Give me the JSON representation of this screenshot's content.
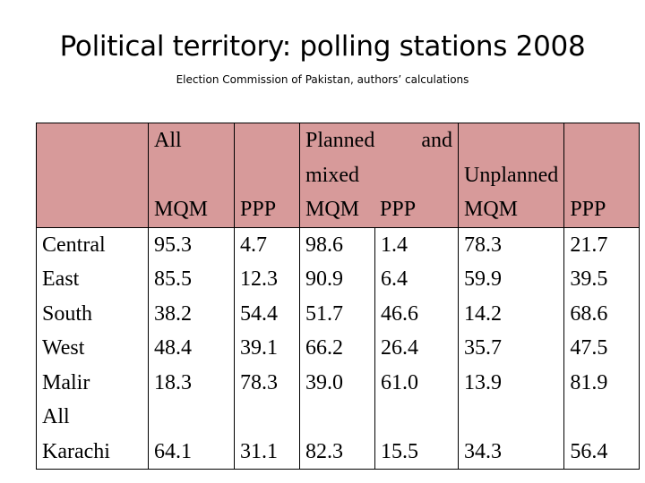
{
  "slide": {
    "title": "Political territory: polling stations 2008",
    "subtitle": "Election Commission of Pakistan, authors’ calculations"
  },
  "table": {
    "groups": {
      "all": "All",
      "planned_line1_a": "Planned",
      "planned_line1_b": "and",
      "planned_line2": "mixed",
      "unplanned": "Unplanned"
    },
    "subheaders": [
      "MQM",
      "PPP",
      "MQM",
      "PPP",
      "MQM",
      "PPP"
    ],
    "row_labels": [
      "Central",
      "East",
      "South",
      "West",
      "Malir"
    ],
    "total_label_line1": "All",
    "total_label_line2": "Karachi",
    "columns": [
      {
        "values": [
          "95.3",
          "85.5",
          "38.2",
          "48.4",
          "18.3"
        ],
        "total": "64.1"
      },
      {
        "values": [
          "4.7",
          "12.3",
          "54.4",
          "39.1",
          "78.3"
        ],
        "total": "31.1"
      },
      {
        "values": [
          "98.6",
          "90.9",
          "51.7",
          "66.2",
          "39.0"
        ],
        "total": "82.3"
      },
      {
        "values": [
          "1.4",
          "6.4",
          "46.6",
          "26.4",
          "61.0"
        ],
        "total": "15.5"
      },
      {
        "values": [
          "78.3",
          "59.9",
          "14.2",
          "35.7",
          "13.9"
        ],
        "total": "34.3"
      },
      {
        "values": [
          "21.7",
          "39.5",
          "68.6",
          "47.5",
          "81.9"
        ],
        "total": "56.4"
      }
    ]
  },
  "colors": {
    "header_fill": "#d79a9a",
    "body_fill": "#ffffff",
    "border": "#000000"
  }
}
